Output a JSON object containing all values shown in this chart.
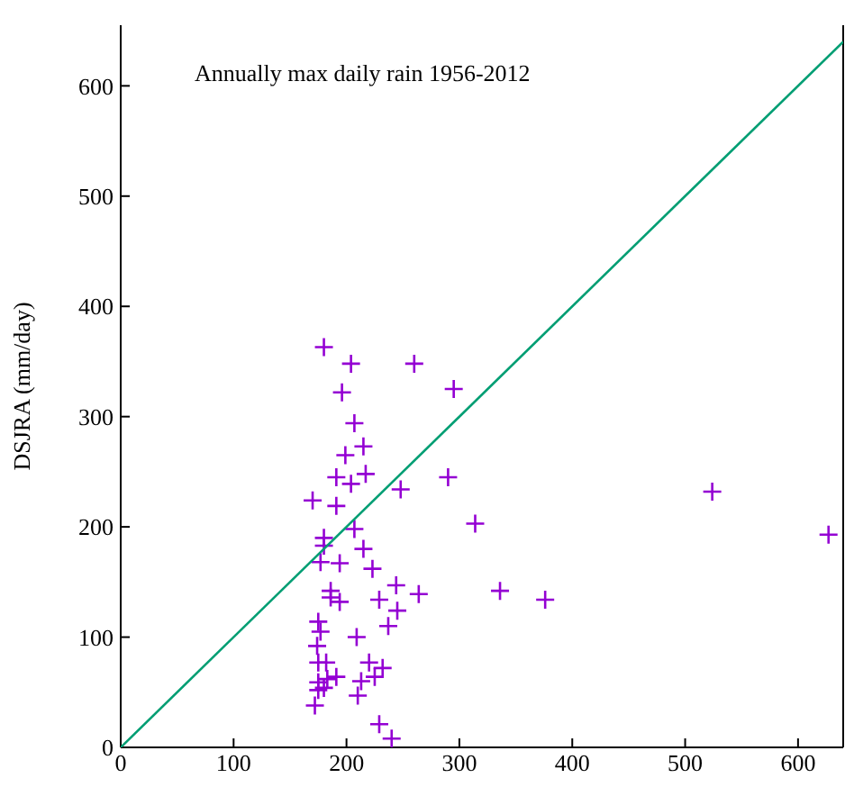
{
  "chart_data": {
    "type": "scatter",
    "ylabel": "DSJRA (mm/day)",
    "annotations": [
      "Annually max daily rain 1956-2012"
    ],
    "xlim": [
      0,
      640
    ],
    "ylim": [
      0,
      655
    ],
    "xticks": [
      0,
      100,
      200,
      300,
      400,
      500,
      600
    ],
    "yticks": [
      0,
      100,
      200,
      300,
      400,
      500,
      600
    ],
    "grid": false,
    "series": [
      {
        "marker": "cross",
        "color": "#9400d3",
        "x": [
          180,
          204,
          260,
          295,
          196,
          207,
          215,
          199,
          191,
          204,
          217,
          170,
          191,
          248,
          290,
          314,
          207,
          180,
          180,
          177,
          194,
          215,
          223,
          186,
          194,
          186,
          229,
          244,
          264,
          336,
          245,
          237,
          209,
          175,
          177,
          174,
          175,
          182,
          220,
          232,
          225,
          191,
          183,
          213,
          175,
          180,
          175,
          210,
          172,
          229,
          240,
          376,
          524,
          627
        ],
        "values": [
          363,
          348,
          348,
          325,
          322,
          294,
          273,
          265,
          245,
          239,
          248,
          224,
          219,
          234,
          245,
          203,
          198,
          190,
          183,
          168,
          167,
          180,
          162,
          142,
          132,
          136,
          134,
          147,
          139,
          142,
          124,
          110,
          100,
          114,
          105,
          92,
          77,
          77,
          77,
          72,
          64,
          64,
          62,
          60,
          59,
          54,
          52,
          47,
          38,
          21,
          8,
          134,
          232,
          193
        ]
      },
      {
        "type": "line",
        "color": "#009e73",
        "x": [
          0,
          640
        ],
        "values": [
          0,
          640
        ]
      }
    ]
  }
}
